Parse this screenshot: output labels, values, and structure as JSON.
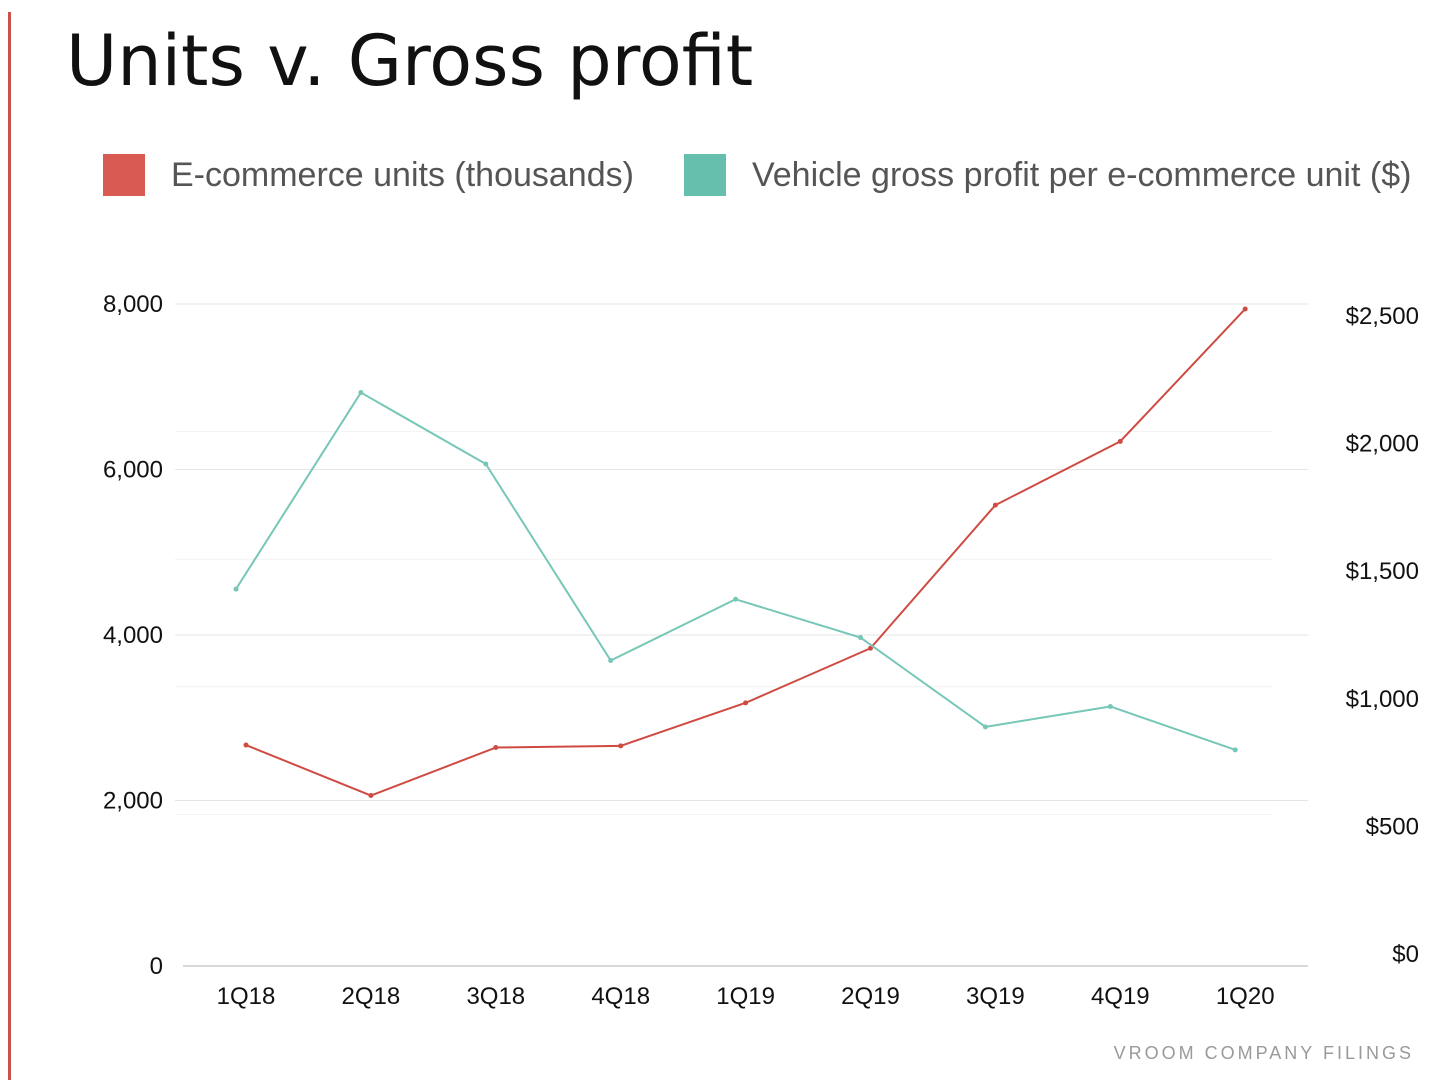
{
  "title": "Units v. Gross profit",
  "source": "VROOM COMPANY FILINGS",
  "colors": {
    "units": "#cf4b42",
    "profit": "#76c7b7",
    "accent": "#c9524a",
    "units_swatch": "#d95a52",
    "profit_swatch": "#66bfac"
  },
  "legend": [
    {
      "label": "E-commerce units (thousands)",
      "color": "#d95a52"
    },
    {
      "label": "Vehicle gross profit per e-commerce unit ($)",
      "color": "#66bfac"
    }
  ],
  "chart_data": {
    "type": "line",
    "categories": [
      "1Q18",
      "2Q18",
      "3Q18",
      "4Q18",
      "1Q19",
      "2Q19",
      "3Q19",
      "4Q19",
      "1Q20"
    ],
    "series": [
      {
        "name": "E-commerce units (thousands)",
        "axis": "left",
        "color": "#cf4b42",
        "values": [
          2670,
          2060,
          2640,
          2660,
          3180,
          3840,
          5570,
          6340,
          7940
        ]
      },
      {
        "name": "Vehicle gross profit per e-commerce unit ($)",
        "axis": "right",
        "color": "#76c7b7",
        "values": [
          1430,
          2200,
          1920,
          1150,
          1390,
          1240,
          890,
          970,
          800
        ]
      }
    ],
    "y_left": {
      "lim": [
        0,
        8000
      ],
      "ticks": [
        "0",
        "2,000",
        "4,000",
        "6,000",
        "8,000"
      ],
      "tick_values": [
        0,
        2000,
        4000,
        6000,
        8000
      ]
    },
    "y_right": {
      "lim": [
        0,
        2500
      ],
      "ticks": [
        "$0",
        "$500",
        "$1,000",
        "$1,500",
        "$2,000",
        "$2,500"
      ],
      "tick_values": [
        0,
        500,
        1000,
        1500,
        2000,
        2500
      ]
    },
    "grid": true,
    "legend_position": "top"
  }
}
